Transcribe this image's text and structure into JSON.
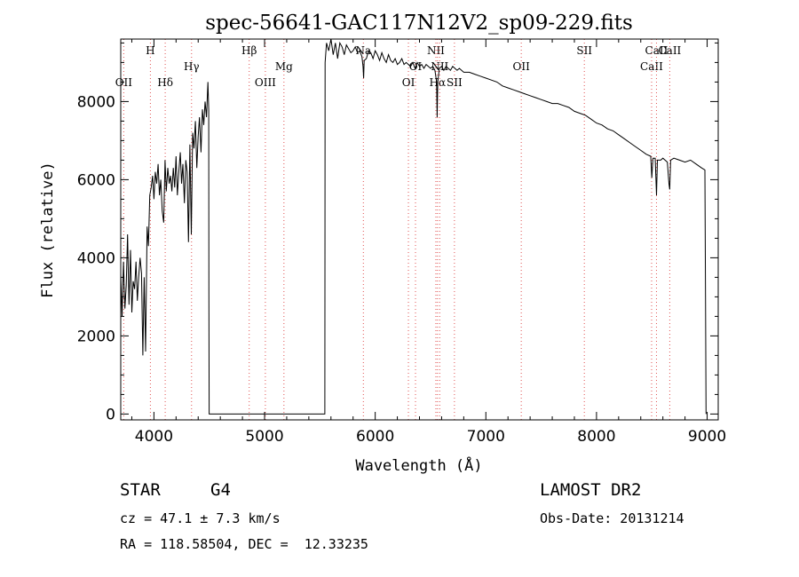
{
  "chart_data": {
    "type": "line",
    "title": "spec-56641-GAC117N12V2_sp09-229.fits",
    "xlabel": "Wavelength (Å)",
    "ylabel": "Flux (relative)",
    "xlim": [
      3700,
      9100
    ],
    "ylim": [
      -150,
      9600
    ],
    "xticks": [
      4000,
      5000,
      6000,
      7000,
      8000,
      9000
    ],
    "yticks": [
      0,
      2000,
      4000,
      6000,
      8000
    ],
    "grid": false,
    "series": [
      {
        "points": [
          [
            3700,
            3600
          ],
          [
            3712,
            2500
          ],
          [
            3725,
            3900
          ],
          [
            3738,
            2700
          ],
          [
            3750,
            3300
          ],
          [
            3762,
            4600
          ],
          [
            3775,
            2800
          ],
          [
            3788,
            4200
          ],
          [
            3800,
            2600
          ],
          [
            3812,
            3400
          ],
          [
            3825,
            3200
          ],
          [
            3838,
            3900
          ],
          [
            3850,
            2900
          ],
          [
            3862,
            3500
          ],
          [
            3875,
            4000
          ],
          [
            3888,
            3600
          ],
          [
            3900,
            1500
          ],
          [
            3912,
            3500
          ],
          [
            3925,
            1600
          ],
          [
            3938,
            4800
          ],
          [
            3950,
            4300
          ],
          [
            3962,
            5600
          ],
          [
            3975,
            5800
          ],
          [
            3988,
            6100
          ],
          [
            4000,
            5500
          ],
          [
            4012,
            6200
          ],
          [
            4025,
            5900
          ],
          [
            4038,
            6400
          ],
          [
            4050,
            5600
          ],
          [
            4062,
            6000
          ],
          [
            4075,
            5200
          ],
          [
            4088,
            4900
          ],
          [
            4100,
            6500
          ],
          [
            4112,
            5700
          ],
          [
            4125,
            6300
          ],
          [
            4138,
            5900
          ],
          [
            4150,
            6100
          ],
          [
            4162,
            5700
          ],
          [
            4175,
            6300
          ],
          [
            4188,
            5800
          ],
          [
            4200,
            6600
          ],
          [
            4212,
            5600
          ],
          [
            4225,
            6200
          ],
          [
            4238,
            6700
          ],
          [
            4250,
            5900
          ],
          [
            4262,
            6400
          ],
          [
            4275,
            5400
          ],
          [
            4288,
            6500
          ],
          [
            4300,
            6200
          ],
          [
            4312,
            4400
          ],
          [
            4325,
            6900
          ],
          [
            4338,
            4600
          ],
          [
            4350,
            7200
          ],
          [
            4362,
            6800
          ],
          [
            4375,
            7500
          ],
          [
            4388,
            6300
          ],
          [
            4400,
            7100
          ],
          [
            4412,
            7600
          ],
          [
            4425,
            6700
          ],
          [
            4438,
            7800
          ],
          [
            4450,
            7400
          ],
          [
            4462,
            8000
          ],
          [
            4475,
            7600
          ],
          [
            4488,
            8500
          ],
          [
            4495,
            7800
          ],
          [
            4497,
            3000
          ],
          [
            4499,
            0
          ],
          [
            5545,
            0
          ],
          [
            5547,
            9000
          ],
          [
            5560,
            9500
          ],
          [
            5580,
            9300
          ],
          [
            5600,
            9600
          ],
          [
            5620,
            9200
          ],
          [
            5640,
            9500
          ],
          [
            5660,
            9100
          ],
          [
            5680,
            9500
          ],
          [
            5700,
            9400
          ],
          [
            5720,
            9200
          ],
          [
            5740,
            9450
          ],
          [
            5760,
            9350
          ],
          [
            5780,
            9250
          ],
          [
            5800,
            9300
          ],
          [
            5820,
            9400
          ],
          [
            5840,
            9250
          ],
          [
            5860,
            9300
          ],
          [
            5880,
            9150
          ],
          [
            5890,
            8900
          ],
          [
            5895,
            8600
          ],
          [
            5900,
            9050
          ],
          [
            5920,
            9100
          ],
          [
            5940,
            9300
          ],
          [
            5960,
            9250
          ],
          [
            5980,
            9100
          ],
          [
            6000,
            9300
          ],
          [
            6020,
            9200
          ],
          [
            6040,
            9050
          ],
          [
            6060,
            9250
          ],
          [
            6080,
            9100
          ],
          [
            6100,
            9000
          ],
          [
            6120,
            9200
          ],
          [
            6140,
            9050
          ],
          [
            6160,
            9000
          ],
          [
            6180,
            9100
          ],
          [
            6200,
            8950
          ],
          [
            6220,
            9000
          ],
          [
            6240,
            9100
          ],
          [
            6260,
            8950
          ],
          [
            6280,
            9000
          ],
          [
            6300,
            8950
          ],
          [
            6320,
            8900
          ],
          [
            6340,
            9000
          ],
          [
            6360,
            8850
          ],
          [
            6380,
            9000
          ],
          [
            6400,
            8900
          ],
          [
            6420,
            8950
          ],
          [
            6440,
            8850
          ],
          [
            6460,
            8950
          ],
          [
            6480,
            8900
          ],
          [
            6500,
            8850
          ],
          [
            6520,
            8900
          ],
          [
            6540,
            8800
          ],
          [
            6555,
            8500
          ],
          [
            6560,
            7600
          ],
          [
            6565,
            8500
          ],
          [
            6580,
            8850
          ],
          [
            6600,
            8900
          ],
          [
            6620,
            8800
          ],
          [
            6640,
            8900
          ],
          [
            6660,
            8850
          ],
          [
            6680,
            8800
          ],
          [
            6700,
            8900
          ],
          [
            6720,
            8850
          ],
          [
            6740,
            8800
          ],
          [
            6760,
            8850
          ],
          [
            6780,
            8800
          ],
          [
            6800,
            8750
          ],
          [
            6850,
            8750
          ],
          [
            6900,
            8700
          ],
          [
            6950,
            8650
          ],
          [
            7000,
            8600
          ],
          [
            7050,
            8550
          ],
          [
            7100,
            8500
          ],
          [
            7150,
            8400
          ],
          [
            7200,
            8350
          ],
          [
            7250,
            8300
          ],
          [
            7300,
            8250
          ],
          [
            7350,
            8200
          ],
          [
            7400,
            8150
          ],
          [
            7450,
            8100
          ],
          [
            7500,
            8050
          ],
          [
            7550,
            8000
          ],
          [
            7600,
            7950
          ],
          [
            7650,
            7950
          ],
          [
            7700,
            7900
          ],
          [
            7750,
            7850
          ],
          [
            7800,
            7750
          ],
          [
            7850,
            7700
          ],
          [
            7900,
            7650
          ],
          [
            7950,
            7550
          ],
          [
            8000,
            7450
          ],
          [
            8050,
            7400
          ],
          [
            8100,
            7300
          ],
          [
            8150,
            7250
          ],
          [
            8200,
            7150
          ],
          [
            8250,
            7050
          ],
          [
            8300,
            6950
          ],
          [
            8350,
            6850
          ],
          [
            8400,
            6750
          ],
          [
            8450,
            6650
          ],
          [
            8490,
            6600
          ],
          [
            8500,
            6050
          ],
          [
            8510,
            6550
          ],
          [
            8530,
            6550
          ],
          [
            8542,
            5600
          ],
          [
            8550,
            6500
          ],
          [
            8580,
            6500
          ],
          [
            8600,
            6550
          ],
          [
            8640,
            6450
          ],
          [
            8655,
            5900
          ],
          [
            8662,
            5750
          ],
          [
            8670,
            6500
          ],
          [
            8700,
            6550
          ],
          [
            8750,
            6500
          ],
          [
            8800,
            6450
          ],
          [
            8850,
            6500
          ],
          [
            8900,
            6400
          ],
          [
            8950,
            6300
          ],
          [
            8980,
            6250
          ],
          [
            8985,
            3000
          ],
          [
            8990,
            0
          ]
        ]
      }
    ],
    "line_markers": [
      {
        "label": "OII",
        "wavelength": 3727,
        "row": 2
      },
      {
        "label": "H",
        "wavelength": 3968,
        "row": 0
      },
      {
        "label": "Hδ",
        "wavelength": 4102,
        "row": 2
      },
      {
        "label": "Hγ",
        "wavelength": 4340,
        "row": 1
      },
      {
        "label": "Hβ",
        "wavelength": 4861,
        "row": 0
      },
      {
        "label": "OIII",
        "wavelength": 5007,
        "row": 2
      },
      {
        "label": "Mg",
        "wavelength": 5175,
        "row": 1
      },
      {
        "label": "Na",
        "wavelength": 5893,
        "row": 0
      },
      {
        "label": "OI",
        "wavelength": 6300,
        "row": 2
      },
      {
        "label": "OI",
        "wavelength": 6364,
        "row": 1
      },
      {
        "label": "NII",
        "wavelength": 6548,
        "row": 0
      },
      {
        "label": "Hα",
        "wavelength": 6563,
        "row": 2
      },
      {
        "label": "NII",
        "wavelength": 6583,
        "row": 1
      },
      {
        "label": "SII",
        "wavelength": 6716,
        "row": 2
      },
      {
        "label": "OII",
        "wavelength": 7320,
        "row": 1
      },
      {
        "label": "SII",
        "wavelength": 7890,
        "row": 0
      },
      {
        "label": "CaII",
        "wavelength": 8498,
        "row": 1
      },
      {
        "label": "CaII",
        "wavelength": 8542,
        "row": 0
      },
      {
        "label": "CaII",
        "wavelength": 8662,
        "row": 0
      }
    ],
    "colors": {
      "spectrum": "#000000",
      "markers": "#e05050"
    }
  },
  "info": {
    "class": "STAR",
    "subclass": "G4",
    "survey": "LAMOST DR2",
    "cz": "cz = 47.1 ± 7.3 km/s",
    "obs_date": "Obs-Date: 20131214",
    "coords": "RA = 118.58504, DEC =  12.33235"
  }
}
